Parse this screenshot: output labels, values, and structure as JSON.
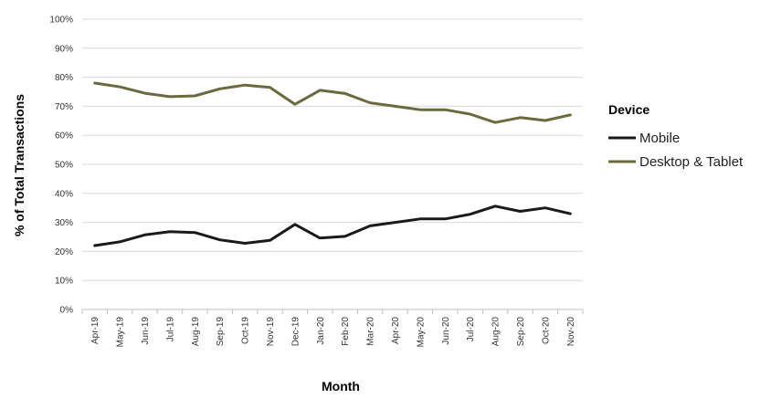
{
  "chart_data": {
    "type": "line",
    "xlabel": "Month",
    "ylabel": "% of Total Transactions",
    "ylim": [
      0,
      100
    ],
    "yticks": [
      "0%",
      "10%",
      "20%",
      "30%",
      "40%",
      "50%",
      "60%",
      "70%",
      "80%",
      "90%",
      "100%"
    ],
    "categories": [
      "Apr-19",
      "May-19",
      "Jun-19",
      "Jul-19",
      "Aug-19",
      "Sep-19",
      "Oct-19",
      "Nov-19",
      "Dec-19",
      "Jan-20",
      "Feb-20",
      "Mar-20",
      "Apr-20",
      "May-20",
      "Jun-20",
      "Jul-20",
      "Aug-20",
      "Sep-20",
      "Oct-20",
      "Nov-20"
    ],
    "grid": true,
    "legend": {
      "title": "Device",
      "placement": "right"
    },
    "series": [
      {
        "name": "Mobile",
        "color": "#1a1a1a",
        "values": [
          22,
          23.3,
          25.7,
          26.8,
          26.5,
          24,
          22.8,
          23.8,
          29.3,
          24.6,
          25.2,
          28.8,
          30,
          31.2,
          31.2,
          32.8,
          35.6,
          33.8,
          35,
          33
        ]
      },
      {
        "name": "Desktop & Tablet",
        "color": "#6b6a3f",
        "values": [
          78,
          76.7,
          74.5,
          73.3,
          73.6,
          76,
          77.3,
          76.5,
          70.7,
          75.5,
          74.4,
          71.2,
          70,
          68.8,
          68.8,
          67.3,
          64.4,
          66.1,
          65.1,
          67
        ]
      }
    ]
  }
}
